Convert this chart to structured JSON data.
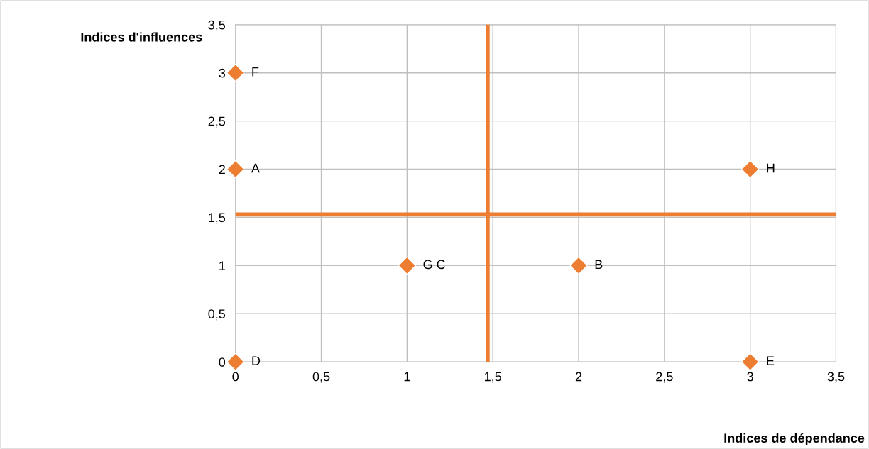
{
  "chart_data": {
    "type": "scatter",
    "xlabel": "Indices de dépendance",
    "ylabel": "Indices d'influences",
    "series": [
      {
        "color": "#ed7d31",
        "x": [
          0,
          0,
          0,
          1,
          2,
          3,
          3
        ],
        "values": [
          3,
          2,
          0,
          1,
          1,
          2,
          0
        ]
      }
    ],
    "marker": "diamond",
    "annotations": [
      {
        "text": "F",
        "x": 0,
        "y": 3
      },
      {
        "text": "A",
        "x": 0,
        "y": 2
      },
      {
        "text": "D",
        "x": 0,
        "y": 0
      },
      {
        "text": "G C",
        "x": 1,
        "y": 1
      },
      {
        "text": "B",
        "x": 2,
        "y": 1
      },
      {
        "text": "H",
        "x": 3,
        "y": 2
      },
      {
        "text": "E",
        "x": 3,
        "y": 0
      }
    ],
    "ref_lines": [
      {
        "axis": "x",
        "value": 1.47,
        "color": "#ed7d31"
      },
      {
        "axis": "y",
        "value": 1.53,
        "color": "#ed7d31"
      }
    ],
    "xlim": [
      0,
      3.5
    ],
    "ylim": [
      0,
      3.5
    ],
    "xticks": [
      {
        "value": 0,
        "label": "0"
      },
      {
        "value": 0.5,
        "label": "0,5"
      },
      {
        "value": 1,
        "label": "1"
      },
      {
        "value": 1.5,
        "label": "1,5"
      },
      {
        "value": 2,
        "label": "2"
      },
      {
        "value": 2.5,
        "label": "2,5"
      },
      {
        "value": 3,
        "label": "3"
      },
      {
        "value": 3.5,
        "label": "3,5"
      }
    ],
    "yticks": [
      {
        "value": 0,
        "label": "0"
      },
      {
        "value": 0.5,
        "label": "0,5"
      },
      {
        "value": 1,
        "label": "1"
      },
      {
        "value": 1.5,
        "label": "1,5"
      },
      {
        "value": 2,
        "label": "2"
      },
      {
        "value": 2.5,
        "label": "2,5"
      },
      {
        "value": 3,
        "label": "3"
      },
      {
        "value": 3.5,
        "label": "3,5"
      }
    ],
    "grid": true
  }
}
